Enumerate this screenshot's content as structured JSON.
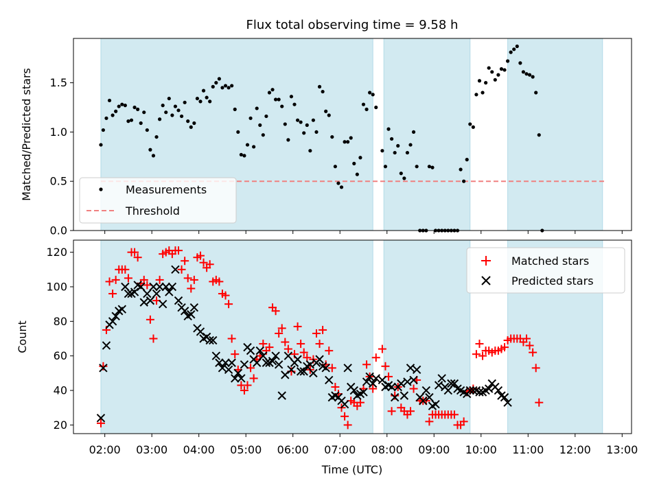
{
  "figure": {
    "title": "Flux total observing time = 9.58 h",
    "xlabel": "Time (UTC)"
  },
  "colors": {
    "shade": "#add8e6",
    "threshold": "#f08080",
    "matched": "#ff0000",
    "predicted": "#000000"
  },
  "chart_data": [
    {
      "type": "scatter",
      "ylabel": "Matched/Predicted stars",
      "xlim": [
        "01:20",
        "13:12"
      ],
      "ylim": [
        0,
        1.95
      ],
      "yticks": [
        0.0,
        0.5,
        1.0,
        1.5
      ],
      "ytick_labels": [
        "0.0",
        "0.5",
        "1.0",
        "1.5"
      ],
      "legend_position": "lower-left",
      "shaded_intervals": [
        [
          "01:55",
          "07:42"
        ],
        [
          "07:56",
          "09:46"
        ],
        [
          "10:34",
          "12:35"
        ]
      ],
      "threshold": 0.5,
      "x": [
        "01:55",
        "01:58",
        "02:02",
        "02:06",
        "02:10",
        "02:14",
        "02:18",
        "02:22",
        "02:26",
        "02:30",
        "02:34",
        "02:38",
        "02:42",
        "02:46",
        "02:50",
        "02:54",
        "02:58",
        "03:02",
        "03:06",
        "03:10",
        "03:14",
        "03:18",
        "03:22",
        "03:26",
        "03:30",
        "03:34",
        "03:38",
        "03:42",
        "03:46",
        "03:50",
        "03:54",
        "03:58",
        "04:02",
        "04:06",
        "04:10",
        "04:14",
        "04:18",
        "04:22",
        "04:26",
        "04:30",
        "04:34",
        "04:38",
        "04:42",
        "04:46",
        "04:50",
        "04:54",
        "04:58",
        "05:02",
        "05:06",
        "05:10",
        "05:14",
        "05:18",
        "05:22",
        "05:26",
        "05:30",
        "05:34",
        "05:38",
        "05:42",
        "05:46",
        "05:50",
        "05:54",
        "05:58",
        "06:02",
        "06:06",
        "06:10",
        "06:14",
        "06:18",
        "06:22",
        "06:26",
        "06:30",
        "06:34",
        "06:38",
        "06:42",
        "06:46",
        "06:50",
        "06:54",
        "06:58",
        "07:02",
        "07:06",
        "07:10",
        "07:14",
        "07:18",
        "07:22",
        "07:26",
        "07:30",
        "07:34",
        "07:38",
        "07:42",
        "07:46",
        "07:54",
        "07:58",
        "08:02",
        "08:06",
        "08:10",
        "08:14",
        "08:18",
        "08:22",
        "08:26",
        "08:30",
        "08:34",
        "08:38",
        "08:42",
        "08:46",
        "08:50",
        "08:54",
        "08:58",
        "09:02",
        "09:06",
        "09:10",
        "09:14",
        "09:18",
        "09:22",
        "09:26",
        "09:30",
        "09:34",
        "09:38",
        "09:42",
        "09:46",
        "09:50",
        "09:54",
        "09:58",
        "10:02",
        "10:06",
        "10:10",
        "10:14",
        "10:18",
        "10:22",
        "10:26",
        "10:30",
        "10:34",
        "10:38",
        "10:42",
        "10:46",
        "10:50",
        "10:54",
        "10:58",
        "11:02",
        "11:06",
        "11:10",
        "11:14",
        "11:18",
        "11:22",
        "11:26",
        "11:30",
        "11:34",
        "11:38",
        "11:42",
        "11:46",
        "11:50",
        "11:54",
        "11:58",
        "12:02",
        "12:06",
        "12:10",
        "12:14",
        "12:18",
        "12:22",
        "12:26",
        "12:30",
        "12:34",
        "12:38"
      ],
      "series": [
        {
          "name": "Measurements",
          "marker": "dot",
          "values": [
            0.87,
            1.02,
            1.14,
            1.32,
            1.17,
            1.21,
            1.26,
            1.28,
            1.27,
            1.11,
            1.12,
            1.25,
            1.23,
            1.09,
            1.2,
            1.02,
            0.82,
            0.76,
            0.95,
            1.13,
            1.27,
            1.2,
            1.34,
            1.17,
            1.26,
            1.22,
            1.16,
            1.3,
            1.11,
            1.05,
            1.09,
            1.34,
            1.31,
            1.42,
            1.35,
            1.31,
            1.46,
            1.5,
            1.54,
            1.45,
            1.47,
            1.45,
            1.47,
            1.23,
            1.0,
            0.77,
            0.76,
            0.87,
            1.14,
            0.85,
            1.24,
            1.07,
            0.97,
            1.16,
            1.4,
            1.43,
            1.33,
            1.33,
            1.26,
            1.08,
            0.92,
            1.36,
            1.28,
            1.12,
            1.1,
            0.99,
            1.07,
            0.81,
            1.12,
            1.0,
            1.46,
            1.41,
            1.21,
            1.17,
            0.95,
            0.65,
            0.48,
            0.44,
            0.9,
            0.9,
            0.94,
            0.68,
            0.57,
            0.74,
            1.28,
            1.23,
            1.4,
            1.38,
            1.25,
            0.81,
            0.65,
            1.03,
            0.93,
            0.79,
            0.86,
            0.58,
            0.53,
            0.79,
            0.87,
            1.0,
            0.65,
            0.0,
            0.0,
            0.0,
            0.65,
            0.64,
            0.0,
            0.0,
            0.0,
            0.0,
            0.0,
            0.0,
            0.0,
            0.0,
            0.62,
            0.5,
            0.72,
            1.08,
            1.05,
            1.38,
            1.52,
            1.4,
            1.5,
            1.65,
            1.61,
            1.53,
            1.58,
            1.64,
            1.63,
            1.72,
            1.81,
            1.84,
            1.87,
            1.7,
            1.61,
            1.59,
            1.58,
            1.56,
            1.4,
            0.97,
            0.0
          ]
        }
      ],
      "threshold_name": "Threshold"
    },
    {
      "type": "scatter",
      "ylabel": "Count",
      "xlim": [
        "01:20",
        "13:12"
      ],
      "ylim": [
        15,
        127
      ],
      "yticks": [
        20,
        40,
        60,
        80,
        100,
        120
      ],
      "ytick_labels": [
        "20",
        "40",
        "60",
        "80",
        "100",
        "120"
      ],
      "xtick_labels": [
        "02:00",
        "03:00",
        "04:00",
        "05:00",
        "06:00",
        "07:00",
        "08:00",
        "09:00",
        "10:00",
        "11:00",
        "12:00",
        "13:00"
      ],
      "legend_position": "upper-right",
      "series": [
        {
          "name": "Matched stars",
          "marker": "plus",
          "values": [
            21,
            54,
            75,
            103,
            96,
            104,
            110,
            110,
            110,
            105,
            120,
            120,
            117,
            102,
            104,
            101,
            81,
            70,
            92,
            104,
            119,
            120,
            121,
            119,
            121,
            121,
            110,
            115,
            105,
            99,
            104,
            117,
            118,
            114,
            111,
            113,
            103,
            104,
            103,
            96,
            95,
            90,
            70,
            61,
            52,
            43,
            40,
            43,
            53,
            47,
            58,
            60,
            67,
            63,
            65,
            88,
            86,
            73,
            76,
            68,
            64,
            51,
            61,
            77,
            67,
            62,
            59,
            52,
            58,
            73,
            67,
            75,
            55,
            63,
            53,
            42,
            38,
            30,
            25,
            20,
            34,
            33,
            31,
            33,
            41,
            55,
            48,
            41,
            59,
            64,
            54,
            48,
            28,
            37,
            42,
            30,
            28,
            26,
            28,
            41,
            46,
            34,
            34,
            34,
            22,
            26,
            26,
            26,
            26,
            26,
            26,
            26,
            26,
            20,
            20,
            22,
            39,
            40,
            41,
            61,
            67,
            60,
            63,
            63,
            62,
            63,
            63,
            64,
            65,
            69,
            70,
            70,
            70,
            70,
            68,
            70,
            66,
            62,
            53,
            33
          ]
        },
        {
          "name": "Predicted stars",
          "marker": "x",
          "values": [
            24,
            53,
            66,
            78,
            80,
            83,
            86,
            87,
            100,
            96,
            96,
            97,
            101,
            100,
            91,
            96,
            92,
            100,
            96,
            100,
            90,
            100,
            97,
            100,
            110,
            92,
            88,
            86,
            83,
            84,
            88,
            76,
            74,
            70,
            71,
            69,
            69,
            60,
            56,
            53,
            56,
            52,
            56,
            47,
            50,
            47,
            55,
            65,
            63,
            58,
            56,
            63,
            60,
            56,
            56,
            57,
            60,
            55,
            37,
            49,
            60,
            52,
            56,
            58,
            51,
            51,
            54,
            55,
            50,
            56,
            58,
            54,
            53,
            46,
            36,
            37,
            36,
            34,
            32,
            53,
            42,
            40,
            37,
            38,
            39,
            45,
            48,
            44,
            47,
            46,
            42,
            43,
            42,
            36,
            42,
            44,
            37,
            45,
            53,
            46,
            52,
            36,
            34,
            40,
            36,
            31,
            32,
            43,
            47,
            42,
            40,
            44,
            44,
            41,
            40,
            39,
            38,
            40,
            40,
            40,
            39,
            39,
            40,
            41,
            44,
            42,
            40,
            37,
            36,
            33
          ]
        }
      ]
    }
  ]
}
